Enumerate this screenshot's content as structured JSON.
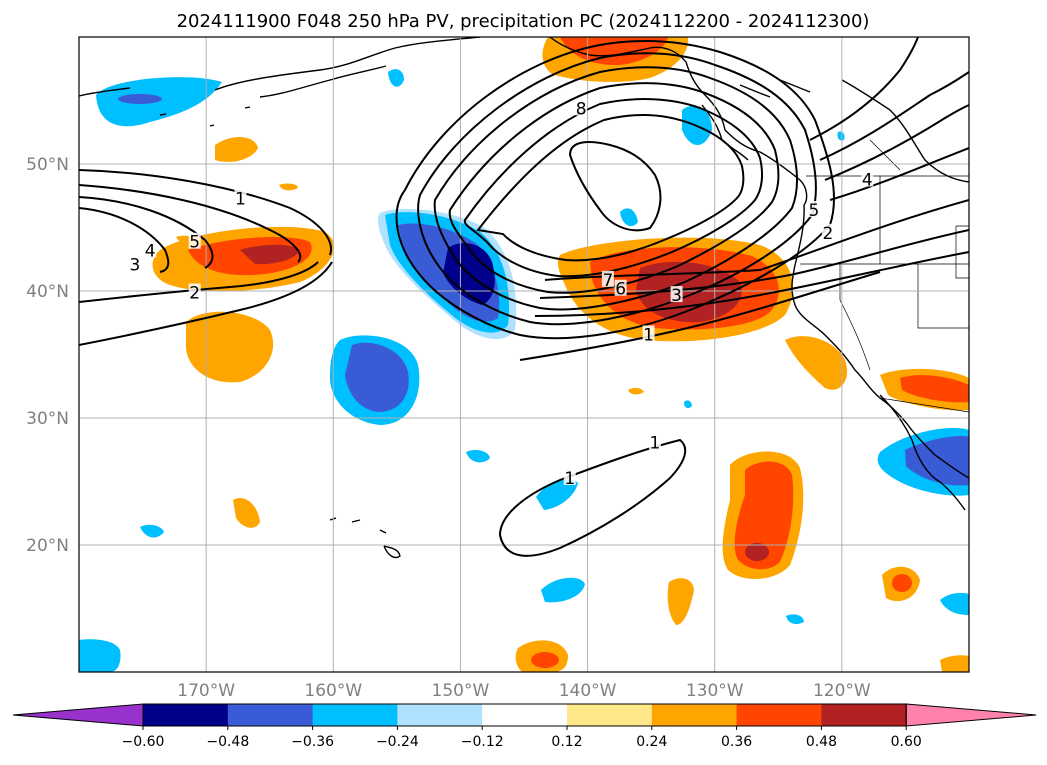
{
  "title": "2024111900 F048 250 hPa PV, precipitation PC (2024112200 - 2024112300)",
  "map": {
    "lon_range": [
      -180,
      -110
    ],
    "lat_range": [
      10,
      60
    ],
    "lon_ticks": [
      {
        "value": -170,
        "label": "170°W"
      },
      {
        "value": -160,
        "label": "160°W"
      },
      {
        "value": -150,
        "label": "150°W"
      },
      {
        "value": -140,
        "label": "140°W"
      },
      {
        "value": -130,
        "label": "130°W"
      },
      {
        "value": -120,
        "label": "120°W"
      }
    ],
    "lat_ticks": [
      {
        "value": 20,
        "label": "20°N"
      },
      {
        "value": 30,
        "label": "30°N"
      },
      {
        "value": 40,
        "label": "40°N"
      },
      {
        "value": 50,
        "label": "50°N"
      }
    ],
    "grid": true,
    "tick_label_color": "#808080"
  },
  "colorbar": {
    "orientation": "horizontal",
    "extend": "both",
    "levels": [
      -0.6,
      -0.48,
      -0.36,
      -0.24,
      -0.12,
      0.12,
      0.24,
      0.36,
      0.48,
      0.6
    ],
    "tick_labels": [
      "−0.60",
      "−0.48",
      "−0.36",
      "−0.24",
      "−0.12",
      "0.12",
      "0.24",
      "0.36",
      "0.48",
      "0.60"
    ],
    "colors": [
      "#9932cc",
      "#00008b",
      "#3a5bd6",
      "#00bfff",
      "#b0e2ff",
      "#ffffff",
      "#ffe88a",
      "#ffa500",
      "#ff4500",
      "#b22222",
      "#ff82ab"
    ]
  },
  "contour_labels": [
    {
      "text": "1",
      "lon": -167.3,
      "lat": 47.2
    },
    {
      "text": "3",
      "lon": -175.6,
      "lat": 42.0
    },
    {
      "text": "4",
      "lon": -174.4,
      "lat": 43.1
    },
    {
      "text": "5",
      "lon": -170.9,
      "lat": 43.8
    },
    {
      "text": "2",
      "lon": -170.9,
      "lat": 39.8
    },
    {
      "text": "8",
      "lon": -140.5,
      "lat": 54.3
    },
    {
      "text": "7",
      "lon": -138.4,
      "lat": 40.8
    },
    {
      "text": "6",
      "lon": -137.4,
      "lat": 40.1
    },
    {
      "text": "3",
      "lon": -133.0,
      "lat": 39.6
    },
    {
      "text": "1",
      "lon": -135.2,
      "lat": 36.5
    },
    {
      "text": "2",
      "lon": -121.1,
      "lat": 44.5
    },
    {
      "text": "5",
      "lon": -122.2,
      "lat": 46.3
    },
    {
      "text": "4",
      "lon": -118.0,
      "lat": 48.7
    },
    {
      "text": "1",
      "lon": -134.7,
      "lat": 28.0
    },
    {
      "text": "1",
      "lon": -141.4,
      "lat": 25.2
    }
  ]
}
